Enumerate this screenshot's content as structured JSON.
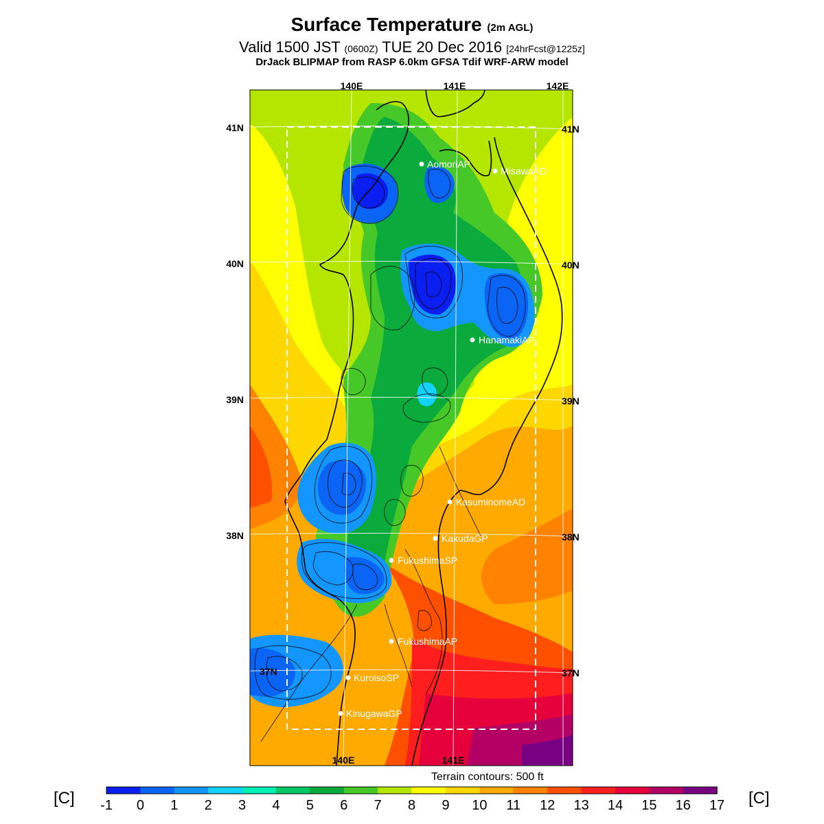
{
  "header": {
    "title": "Surface Temperature",
    "title_suffix": "(2m AGL)",
    "valid_prefix": "Valid 1500 JST",
    "valid_zulu": "(0600Z)",
    "valid_date": "TUE 20 Dec 2016",
    "forecast": "[24hrFcst@1225z]",
    "model_line": "DrJack BLIPMAP from RASP 6.0km GFSA Tdif WRF-ARW model"
  },
  "map": {
    "lon_labels_top": [
      "140E",
      "141E",
      "142E"
    ],
    "lon_labels_bottom": [
      "140E",
      "141E"
    ],
    "lat_labels": [
      "41N",
      "40N",
      "39N",
      "38N",
      "37N"
    ],
    "terrain_note": "Terrain contours: 500 ft",
    "stations": [
      {
        "name": "AomoriAP"
      },
      {
        "name": "MisawaAD"
      },
      {
        "name": "HanamakiAP"
      },
      {
        "name": "KasuminomeAD"
      },
      {
        "name": "KakudaGP"
      },
      {
        "name": "FukushimaSP"
      },
      {
        "name": "FukushimaAP"
      },
      {
        "name": "KuroisoSP"
      },
      {
        "name": "KinugawaGP"
      }
    ]
  },
  "colorbar": {
    "unit_left": "[C]",
    "unit_right": "[C]",
    "ticks": [
      "-1",
      "0",
      "1",
      "2",
      "3",
      "4",
      "5",
      "6",
      "7",
      "8",
      "9",
      "10",
      "11",
      "12",
      "13",
      "14",
      "15",
      "16",
      "17"
    ],
    "colors": [
      "#0a1ef0",
      "#0a64f5",
      "#1496ff",
      "#14d2ff",
      "#00f0b4",
      "#00c864",
      "#0aaa3c",
      "#46c828",
      "#b4e600",
      "#ffff00",
      "#ffd700",
      "#ffaa00",
      "#ff8200",
      "#ff5000",
      "#ff1e1e",
      "#e6003c",
      "#b40064",
      "#780082"
    ]
  }
}
